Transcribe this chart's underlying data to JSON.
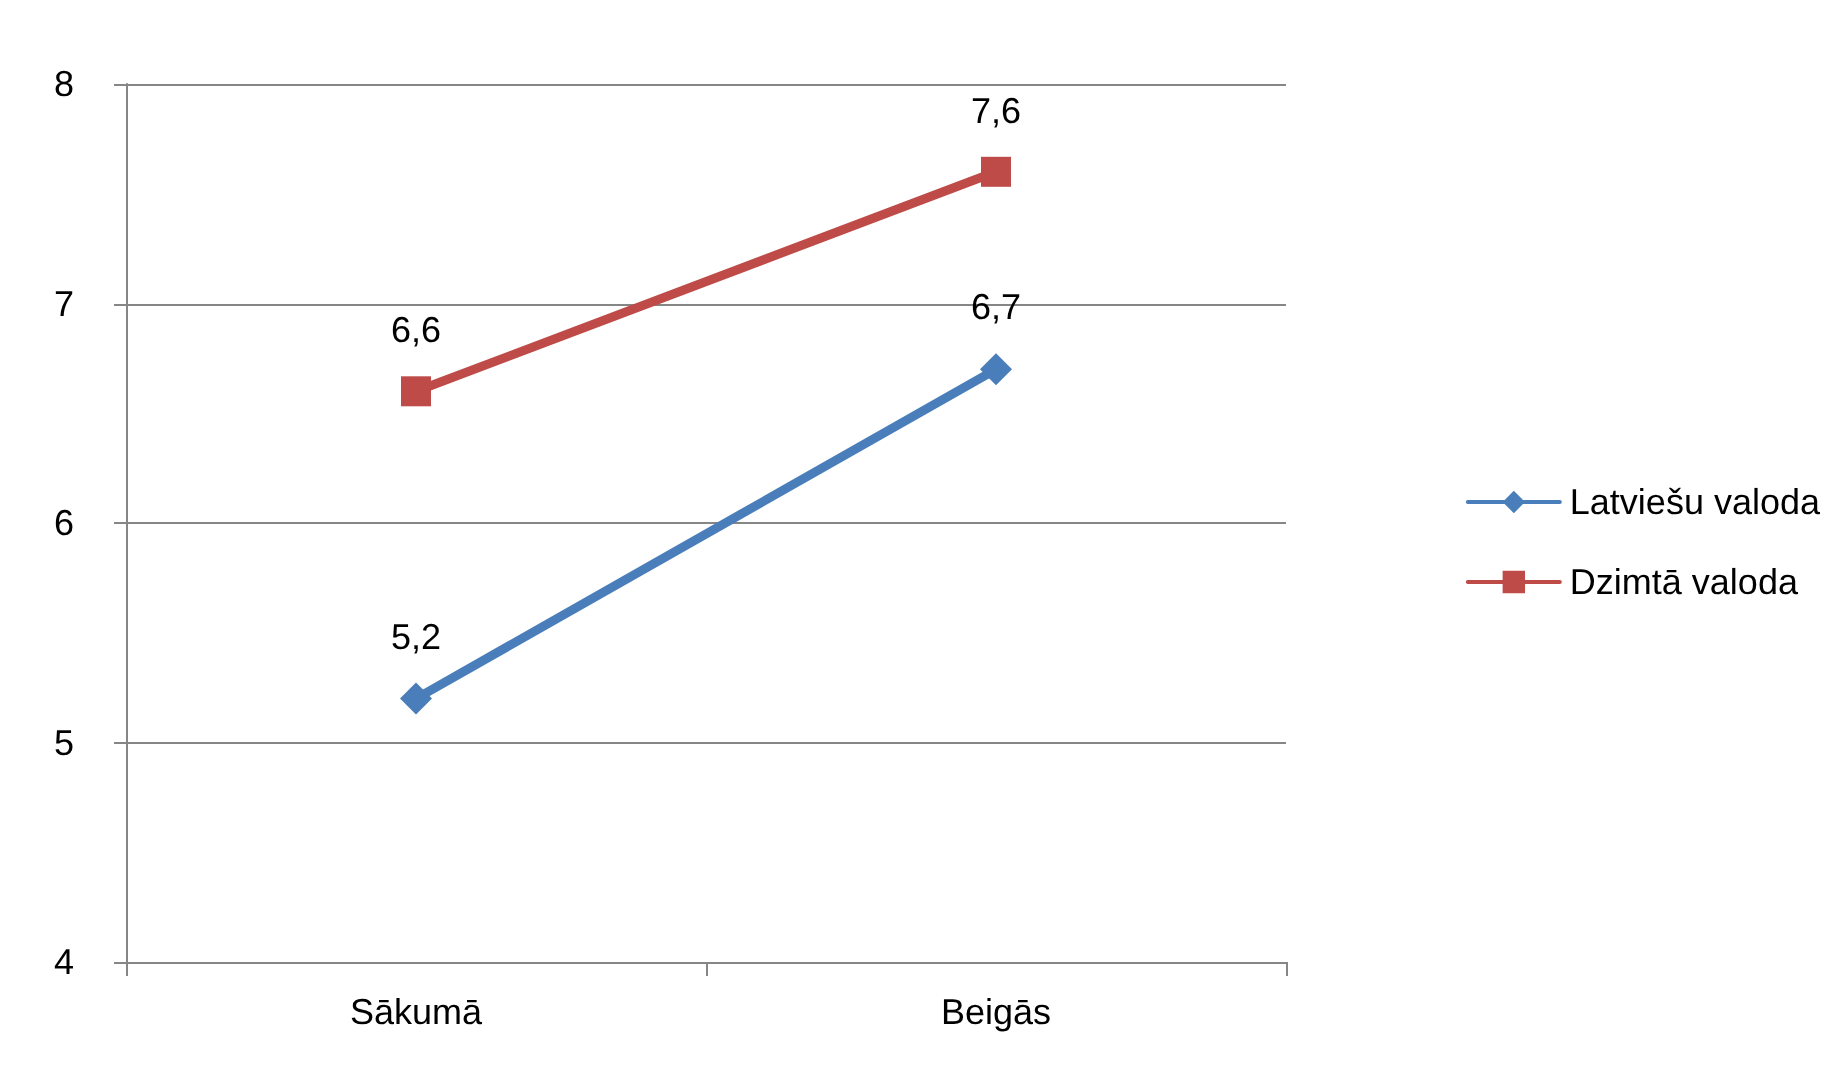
{
  "chart_data": {
    "type": "line",
    "categories": [
      "Sākumā",
      "Beigās"
    ],
    "series": [
      {
        "name": "Latviešu valoda",
        "color": "#4a7ebb",
        "values": [
          5.2,
          6.7
        ],
        "value_labels": [
          "5,2",
          "6,7"
        ],
        "marker": "diamond"
      },
      {
        "name": "Dzimtā valoda",
        "color": "#be4b48",
        "values": [
          6.6,
          7.6
        ],
        "value_labels": [
          "6,6",
          "7,6"
        ],
        "marker": "square"
      }
    ],
    "ylim": [
      4,
      8
    ],
    "yticks": [
      4,
      5,
      6,
      7,
      8
    ],
    "grid": "y",
    "legend": "right",
    "line_style": "solid"
  }
}
